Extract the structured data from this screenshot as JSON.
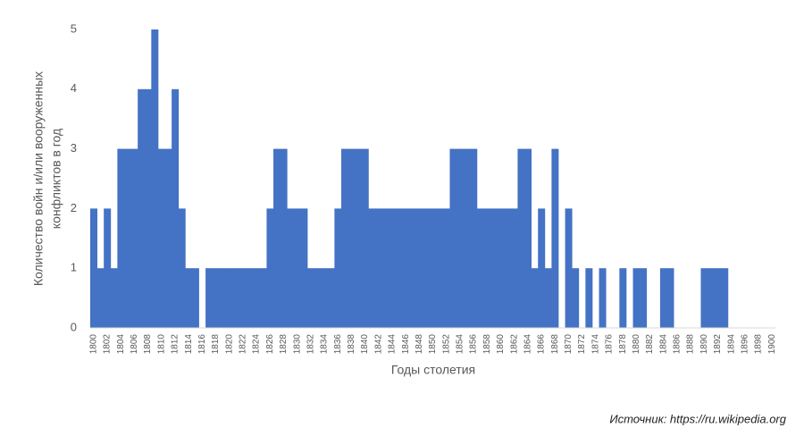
{
  "chart_data": {
    "type": "bar",
    "ylabel": [
      "Количество войн и/или вооруженных",
      "конфликтов в год"
    ],
    "xlabel": "Годы столетия",
    "source": "Источник: https://ru.wikipedia.org",
    "color": "#4472c4",
    "ylim": [
      0,
      5
    ],
    "yticks": [
      0,
      1,
      2,
      3,
      4,
      5
    ],
    "grid": false,
    "categories": [
      "1800",
      null,
      "1802",
      null,
      "1804",
      null,
      "1806",
      null,
      "1808",
      null,
      "1810",
      null,
      "1812",
      null,
      "1814",
      null,
      "1816",
      null,
      "1818",
      null,
      "1820",
      null,
      "1822",
      null,
      "1824",
      null,
      "1826",
      null,
      "1828",
      null,
      "1830",
      null,
      "1832",
      null,
      "1834",
      null,
      "1836",
      null,
      "1838",
      null,
      "1840",
      null,
      "1842",
      null,
      "1844",
      null,
      "1846",
      null,
      "1848",
      null,
      "1850",
      null,
      "1852",
      null,
      "1854",
      null,
      "1856",
      null,
      "1858",
      null,
      "1860",
      null,
      "1862",
      null,
      "1864",
      null,
      "1866",
      null,
      "1868",
      null,
      "1870",
      null,
      "1872",
      null,
      "1874",
      null,
      "1876",
      null,
      "1878",
      null,
      "1880",
      null,
      "1882",
      null,
      "1884",
      null,
      "1886",
      null,
      "1888",
      null,
      "1890",
      null,
      "1892",
      null,
      "1894",
      null,
      "1896",
      null,
      "1898",
      null,
      "1900"
    ],
    "values": [
      2,
      1,
      2,
      1,
      3,
      3,
      3,
      4,
      4,
      5,
      3,
      3,
      4,
      2,
      1,
      1,
      0,
      1,
      1,
      1,
      1,
      1,
      1,
      1,
      1,
      1,
      2,
      3,
      3,
      2,
      2,
      2,
      1,
      1,
      1,
      1,
      2,
      3,
      3,
      3,
      3,
      2,
      2,
      2,
      2,
      2,
      2,
      2,
      2,
      2,
      2,
      2,
      2,
      3,
      3,
      3,
      3,
      2,
      2,
      2,
      2,
      2,
      2,
      3,
      3,
      1,
      2,
      1,
      3,
      0,
      2,
      1,
      0,
      1,
      0,
      1,
      0,
      0,
      1,
      0,
      1,
      1,
      0,
      0,
      1,
      1,
      0,
      0,
      0,
      0,
      1,
      1,
      1,
      1,
      0,
      0,
      0,
      0,
      0,
      0,
      0
    ]
  }
}
